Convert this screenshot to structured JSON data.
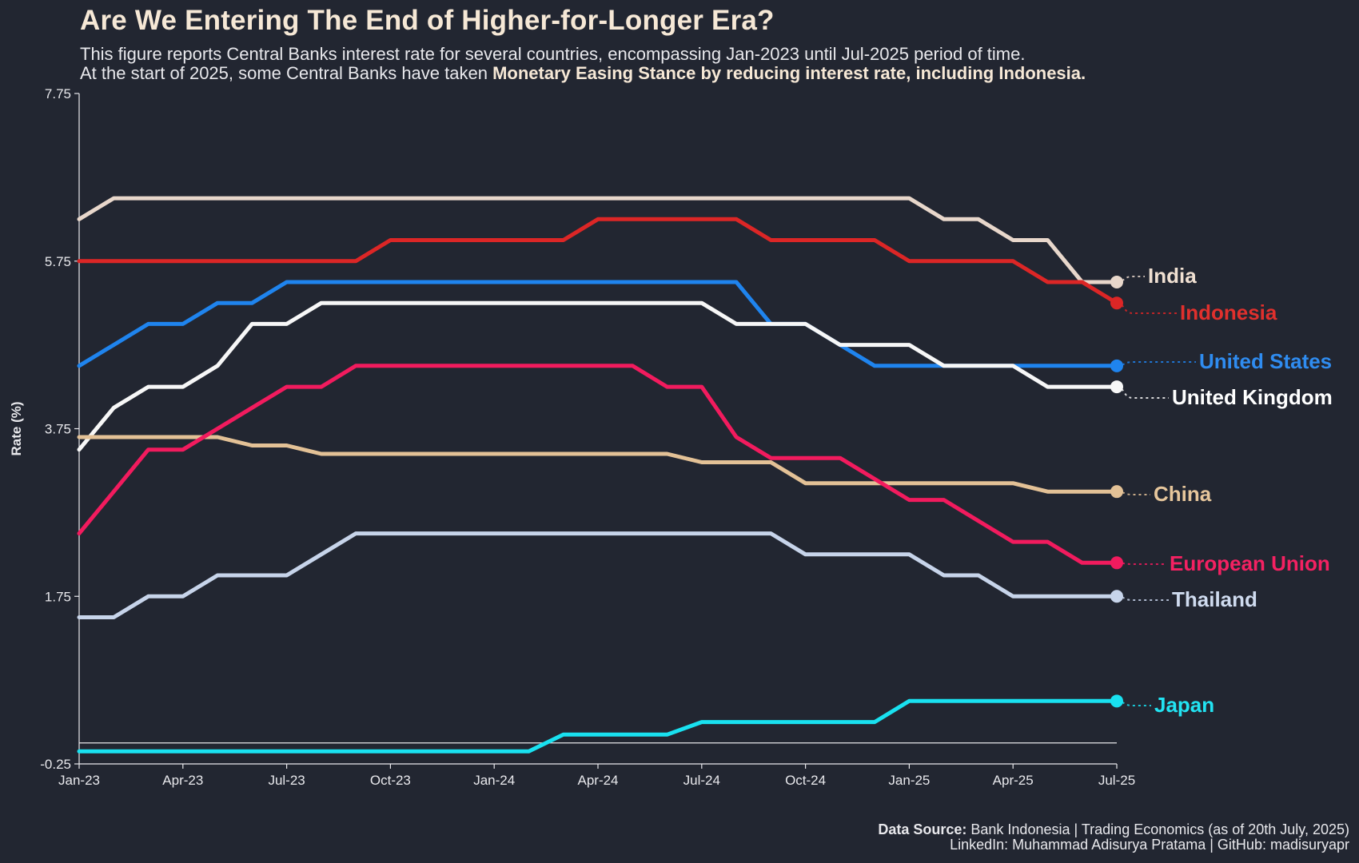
{
  "header": {
    "title": "Are We Entering The End of Higher-for-Longer Era?",
    "subtitle_line1": "This figure reports Central Banks interest rate for several countries, encompassing Jan-2023 until Jul-2025 period of time.",
    "subtitle_line2_prefix": "At the start of 2025, some Central Banks have taken ",
    "subtitle_line2_highlight": "Monetary Easing Stance by reducing interest rate, including Indonesia",
    "subtitle_line2_suffix": "."
  },
  "footer": {
    "source_label": "Data Source:",
    "source_text": " Bank Indonesia | Trading Economics (as of 20th July, 2025)",
    "credit": "LinkedIn: Muhammad Adisurya Pratama | GitHub: madisuryapr"
  },
  "chart_data": {
    "type": "line",
    "title": "Are We Entering The End of Higher-for-Longer Era?",
    "xlabel": "",
    "ylabel": "Rate (%)",
    "ylim": [
      -0.25,
      7.75
    ],
    "yticks": [
      -0.25,
      1.75,
      3.75,
      5.75,
      7.75
    ],
    "ytick_labels": [
      "-0.25",
      "1.75",
      "3.75",
      "5.75",
      "7.75"
    ],
    "xtick_labels": [
      "Jan-23",
      "Apr-23",
      "Jul-23",
      "Oct-23",
      "Jan-24",
      "Apr-24",
      "Jul-24",
      "Oct-24",
      "Jan-25",
      "Apr-25",
      "Jul-25"
    ],
    "x": [
      "2023-01",
      "2023-02",
      "2023-03",
      "2023-04",
      "2023-05",
      "2023-06",
      "2023-07",
      "2023-08",
      "2023-09",
      "2023-10",
      "2023-11",
      "2023-12",
      "2024-01",
      "2024-02",
      "2024-03",
      "2024-04",
      "2024-05",
      "2024-06",
      "2024-07",
      "2024-08",
      "2024-09",
      "2024-10",
      "2024-11",
      "2024-12",
      "2025-01",
      "2025-02",
      "2025-03",
      "2025-04",
      "2025-05",
      "2025-06",
      "2025-07"
    ],
    "reference_line_y": 0,
    "grid": false,
    "legend": "direct labels at right end of lines",
    "series": [
      {
        "name": "India",
        "color": "#e8d7cb",
        "label_color": "#f0e0d2",
        "values": [
          6.25,
          6.5,
          6.5,
          6.5,
          6.5,
          6.5,
          6.5,
          6.5,
          6.5,
          6.5,
          6.5,
          6.5,
          6.5,
          6.5,
          6.5,
          6.5,
          6.5,
          6.5,
          6.5,
          6.5,
          6.5,
          6.5,
          6.5,
          6.5,
          6.5,
          6.25,
          6.25,
          6.0,
          6.0,
          5.5,
          5.5
        ]
      },
      {
        "name": "Indonesia",
        "color": "#dc2626",
        "label_color": "#e0302d",
        "values": [
          5.75,
          5.75,
          5.75,
          5.75,
          5.75,
          5.75,
          5.75,
          5.75,
          5.75,
          6.0,
          6.0,
          6.0,
          6.0,
          6.0,
          6.0,
          6.25,
          6.25,
          6.25,
          6.25,
          6.25,
          6.0,
          6.0,
          6.0,
          6.0,
          5.75,
          5.75,
          5.75,
          5.75,
          5.5,
          5.5,
          5.25
        ]
      },
      {
        "name": "United States",
        "color": "#1f84ee",
        "label_color": "#2f8cf0",
        "values": [
          4.5,
          4.75,
          5.0,
          5.0,
          5.25,
          5.25,
          5.5,
          5.5,
          5.5,
          5.5,
          5.5,
          5.5,
          5.5,
          5.5,
          5.5,
          5.5,
          5.5,
          5.5,
          5.5,
          5.5,
          5.0,
          5.0,
          4.75,
          4.5,
          4.5,
          4.5,
          4.5,
          4.5,
          4.5,
          4.5,
          4.5
        ]
      },
      {
        "name": "United Kingdom",
        "color": "#f7f7f7",
        "label_color": "#ffffff",
        "values": [
          3.5,
          4.0,
          4.25,
          4.25,
          4.5,
          5.0,
          5.0,
          5.25,
          5.25,
          5.25,
          5.25,
          5.25,
          5.25,
          5.25,
          5.25,
          5.25,
          5.25,
          5.25,
          5.25,
          5.0,
          5.0,
          5.0,
          4.75,
          4.75,
          4.75,
          4.5,
          4.5,
          4.5,
          4.25,
          4.25,
          4.25
        ]
      },
      {
        "name": "China",
        "color": "#e3c196",
        "label_color": "#e6c69c",
        "values": [
          3.65,
          3.65,
          3.65,
          3.65,
          3.65,
          3.55,
          3.55,
          3.45,
          3.45,
          3.45,
          3.45,
          3.45,
          3.45,
          3.45,
          3.45,
          3.45,
          3.45,
          3.45,
          3.35,
          3.35,
          3.35,
          3.1,
          3.1,
          3.1,
          3.1,
          3.1,
          3.1,
          3.1,
          3.0,
          3.0,
          3.0
        ]
      },
      {
        "name": "European Union",
        "color": "#f21b5e",
        "label_color": "#f42162",
        "values": [
          2.5,
          3.0,
          3.5,
          3.5,
          3.75,
          4.0,
          4.25,
          4.25,
          4.5,
          4.5,
          4.5,
          4.5,
          4.5,
          4.5,
          4.5,
          4.5,
          4.5,
          4.25,
          4.25,
          3.65,
          3.4,
          3.4,
          3.4,
          3.15,
          2.9,
          2.9,
          2.65,
          2.4,
          2.4,
          2.15,
          2.15
        ]
      },
      {
        "name": "Thailand",
        "color": "#c7d4ea",
        "label_color": "#cfdbef",
        "values": [
          1.5,
          1.5,
          1.75,
          1.75,
          2.0,
          2.0,
          2.0,
          2.25,
          2.5,
          2.5,
          2.5,
          2.5,
          2.5,
          2.5,
          2.5,
          2.5,
          2.5,
          2.5,
          2.5,
          2.5,
          2.5,
          2.25,
          2.25,
          2.25,
          2.25,
          2.0,
          2.0,
          1.75,
          1.75,
          1.75,
          1.75
        ]
      },
      {
        "name": "Japan",
        "color": "#19e1f0",
        "label_color": "#22e3f2",
        "values": [
          -0.1,
          -0.1,
          -0.1,
          -0.1,
          -0.1,
          -0.1,
          -0.1,
          -0.1,
          -0.1,
          -0.1,
          -0.1,
          -0.1,
          -0.1,
          -0.1,
          0.1,
          0.1,
          0.1,
          0.1,
          0.25,
          0.25,
          0.25,
          0.25,
          0.25,
          0.25,
          0.5,
          0.5,
          0.5,
          0.5,
          0.5,
          0.5,
          0.5
        ]
      }
    ]
  }
}
